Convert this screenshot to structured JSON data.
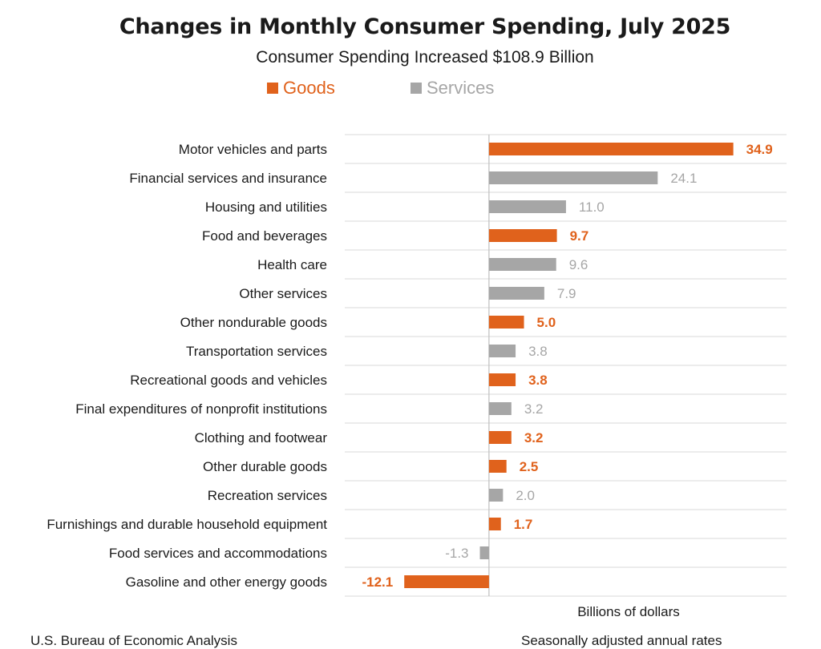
{
  "chart_data": {
    "type": "bar",
    "orientation": "horizontal",
    "title": "Changes in Monthly Consumer Spending, July 2025",
    "subtitle": "Consumer Spending Increased $108.9 Billion",
    "xlabel": "Billions of dollars",
    "legend_placement": "top",
    "grid": true,
    "xlim": [
      -20.6,
      42.5
    ],
    "series": [
      {
        "name": "Goods",
        "color": "#e0621c"
      },
      {
        "name": "Services",
        "color": "#a6a6a6"
      }
    ],
    "categories": [
      "Motor vehicles and parts",
      "Financial services and insurance",
      "Housing and utilities",
      "Food and beverages",
      "Health care",
      "Other services",
      "Other nondurable goods",
      "Transportation services",
      "Recreational goods and vehicles",
      "Final expenditures of nonprofit institutions",
      "Clothing and footwear",
      "Other durable goods",
      "Recreation services",
      "Furnishings and durable household equipment",
      "Food services and accommodations",
      "Gasoline and other energy goods"
    ],
    "values": [
      34.9,
      24.1,
      11.0,
      9.7,
      9.6,
      7.9,
      5.0,
      3.8,
      3.8,
      3.2,
      3.2,
      2.5,
      2.0,
      1.7,
      -1.3,
      -12.1
    ],
    "value_labels": [
      "34.9",
      "24.1",
      "11.0",
      "9.7",
      "9.6",
      "7.9",
      "5.0",
      "3.8",
      "3.8",
      "3.2",
      "3.2",
      "2.5",
      "2.0",
      "1.7",
      "-1.3",
      "-12.1"
    ],
    "series_index": [
      0,
      1,
      1,
      0,
      1,
      1,
      0,
      1,
      0,
      1,
      0,
      0,
      1,
      0,
      1,
      0
    ]
  },
  "footer": {
    "source": "U.S. Bureau of Economic Analysis",
    "rate_note": "Seasonally adjusted annual rates"
  }
}
